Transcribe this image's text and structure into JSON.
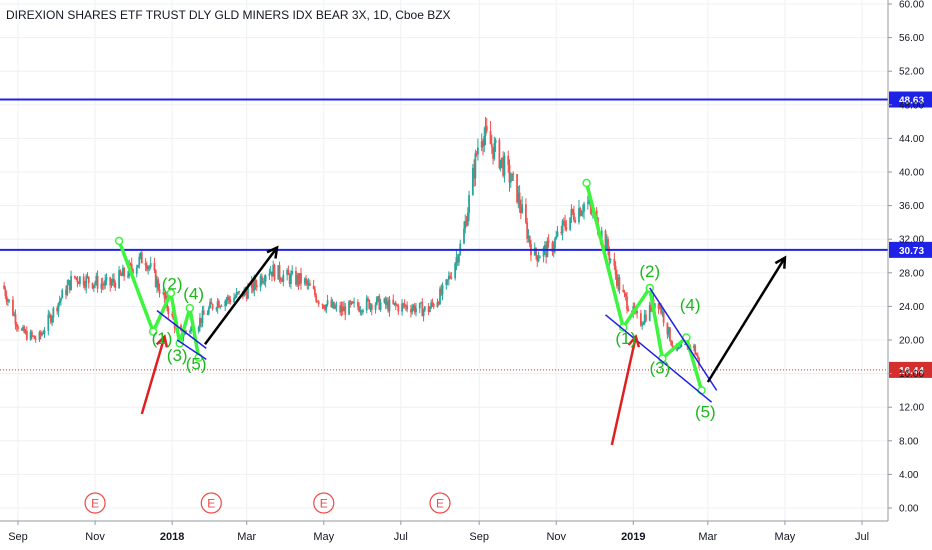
{
  "chart_data": {
    "type": "line",
    "title": "DIREXION SHARES ETF TRUST DLY GLD MINERS IDX BEAR 3X, 1D, Cboe BZX",
    "x_tick_labels": [
      "Sep",
      "Nov",
      "2018",
      "Mar",
      "May",
      "Jul",
      "Sep",
      "Nov",
      "2019",
      "Mar",
      "May",
      "Jul"
    ],
    "y_tick_labels": [
      "0.00",
      "4.00",
      "8.00",
      "12.00",
      "16.00",
      "20.00",
      "24.00",
      "28.00",
      "32.00",
      "36.00",
      "40.00",
      "44.00",
      "48.00",
      "52.00",
      "56.00",
      "60.00"
    ],
    "ylim": [
      0,
      60
    ],
    "grid": true,
    "price_series": {
      "name": "",
      "dates": [
        "2017-08-20",
        "2017-09-03",
        "2017-09-17",
        "2017-10-01",
        "2017-10-15",
        "2017-10-29",
        "2017-11-12",
        "2017-11-26",
        "2017-12-10",
        "2017-12-24",
        "2018-01-07",
        "2018-01-21",
        "2018-02-04",
        "2018-02-18",
        "2018-03-04",
        "2018-03-18",
        "2018-04-01",
        "2018-04-15",
        "2018-04-29",
        "2018-05-13",
        "2018-05-27",
        "2018-06-10",
        "2018-06-24",
        "2018-07-08",
        "2018-07-22",
        "2018-08-05",
        "2018-08-19",
        "2018-09-02",
        "2018-09-16",
        "2018-09-30",
        "2018-10-14",
        "2018-10-28",
        "2018-11-11",
        "2018-11-25",
        "2018-12-09",
        "2018-12-23",
        "2019-01-06",
        "2019-01-20",
        "2019-02-03",
        "2019-02-17",
        "2019-02-24"
      ],
      "close": [
        26.5,
        21.0,
        20.0,
        24.0,
        27.5,
        27.0,
        26.5,
        28.0,
        30.0,
        25.5,
        20.5,
        22.0,
        24.5,
        25.0,
        26.0,
        28.5,
        27.5,
        27.0,
        24.5,
        23.5,
        24.0,
        24.5,
        24.0,
        24.0,
        23.5,
        26.0,
        32.0,
        45.0,
        42.0,
        38.0,
        30.0,
        31.0,
        34.5,
        36.5,
        32.0,
        25.5,
        22.0,
        25.0,
        18.5,
        19.5,
        16.4
      ]
    },
    "horizontal_levels": [
      {
        "label": "48.63",
        "value": 48.63,
        "color": "#1e22e6"
      },
      {
        "label": "30.73",
        "value": 30.73,
        "color": "#1e22e6"
      },
      {
        "label": "16.44",
        "value": 16.44,
        "color": "#d32f2f"
      }
    ],
    "event_markers": [
      {
        "label": "E",
        "date": "2017-11-01"
      },
      {
        "label": "E",
        "date": "2018-02-01"
      },
      {
        "label": "E",
        "date": "2018-05-01"
      },
      {
        "label": "E",
        "date": "2018-08-01"
      }
    ],
    "wave_labels": [
      {
        "label": "(1)",
        "date": "2017-12-24",
        "value": 19.5
      },
      {
        "label": "(2)",
        "date": "2018-01-01",
        "value": 26.0
      },
      {
        "label": "(3)",
        "date": "2018-01-05",
        "value": 17.5
      },
      {
        "label": "(4)",
        "date": "2018-01-18",
        "value": 24.8
      },
      {
        "label": "(5)",
        "date": "2018-01-20",
        "value": 16.5
      },
      {
        "label": "(1)",
        "date": "2018-12-26",
        "value": 19.5
      },
      {
        "label": "(2)",
        "date": "2019-01-14",
        "value": 27.5
      },
      {
        "label": "(3)",
        "date": "2019-01-22",
        "value": 16.0
      },
      {
        "label": "(4)",
        "date": "2019-02-15",
        "value": 23.5
      },
      {
        "label": "(5)",
        "date": "2019-02-27",
        "value": 10.8
      }
    ],
    "colors": {
      "up": "#26a69a",
      "down": "#ef5350",
      "wave": "#3df53d",
      "channel": "#1e22e6",
      "arrow_up": "#000000",
      "arrow_red": "#e02020"
    }
  }
}
